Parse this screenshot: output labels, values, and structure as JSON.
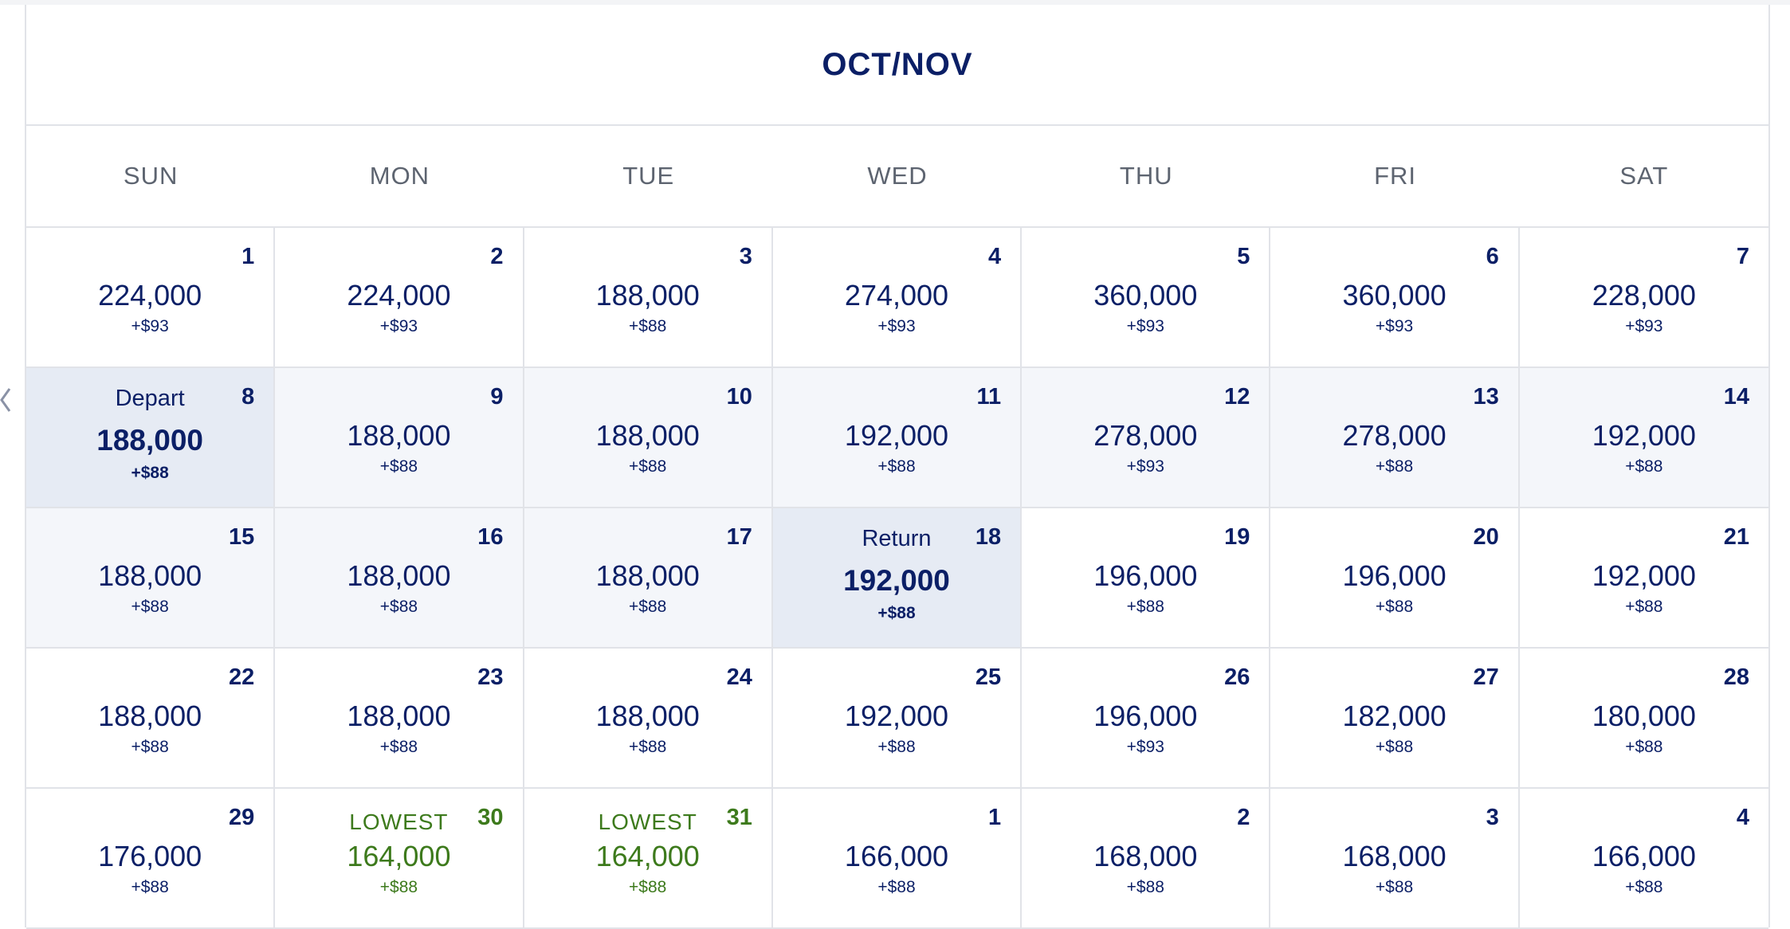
{
  "calendar": {
    "month_title": "OCT/NOV",
    "weekdays": [
      "SUN",
      "MON",
      "TUE",
      "WED",
      "THU",
      "FRI",
      "SAT"
    ],
    "days": [
      {
        "day": "1",
        "miles": "224,000",
        "fee": "+$93"
      },
      {
        "day": "2",
        "miles": "224,000",
        "fee": "+$93"
      },
      {
        "day": "3",
        "miles": "188,000",
        "fee": "+$88"
      },
      {
        "day": "4",
        "miles": "274,000",
        "fee": "+$93"
      },
      {
        "day": "5",
        "miles": "360,000",
        "fee": "+$93"
      },
      {
        "day": "6",
        "miles": "360,000",
        "fee": "+$93"
      },
      {
        "day": "7",
        "miles": "228,000",
        "fee": "+$93"
      },
      {
        "day": "8",
        "miles": "188,000",
        "fee": "+$88",
        "label": "Depart",
        "state": "selected"
      },
      {
        "day": "9",
        "miles": "188,000",
        "fee": "+$88",
        "state": "range"
      },
      {
        "day": "10",
        "miles": "188,000",
        "fee": "+$88",
        "state": "range"
      },
      {
        "day": "11",
        "miles": "192,000",
        "fee": "+$88",
        "state": "range"
      },
      {
        "day": "12",
        "miles": "278,000",
        "fee": "+$93",
        "state": "range"
      },
      {
        "day": "13",
        "miles": "278,000",
        "fee": "+$88",
        "state": "range"
      },
      {
        "day": "14",
        "miles": "192,000",
        "fee": "+$88",
        "state": "range"
      },
      {
        "day": "15",
        "miles": "188,000",
        "fee": "+$88",
        "state": "range"
      },
      {
        "day": "16",
        "miles": "188,000",
        "fee": "+$88",
        "state": "range"
      },
      {
        "day": "17",
        "miles": "188,000",
        "fee": "+$88",
        "state": "range"
      },
      {
        "day": "18",
        "miles": "192,000",
        "fee": "+$88",
        "label": "Return",
        "state": "selected"
      },
      {
        "day": "19",
        "miles": "196,000",
        "fee": "+$88"
      },
      {
        "day": "20",
        "miles": "196,000",
        "fee": "+$88"
      },
      {
        "day": "21",
        "miles": "192,000",
        "fee": "+$88"
      },
      {
        "day": "22",
        "miles": "188,000",
        "fee": "+$88"
      },
      {
        "day": "23",
        "miles": "188,000",
        "fee": "+$88"
      },
      {
        "day": "24",
        "miles": "188,000",
        "fee": "+$88"
      },
      {
        "day": "25",
        "miles": "192,000",
        "fee": "+$88"
      },
      {
        "day": "26",
        "miles": "196,000",
        "fee": "+$93"
      },
      {
        "day": "27",
        "miles": "182,000",
        "fee": "+$88"
      },
      {
        "day": "28",
        "miles": "180,000",
        "fee": "+$88"
      },
      {
        "day": "29",
        "miles": "176,000",
        "fee": "+$88"
      },
      {
        "day": "30",
        "miles": "164,000",
        "fee": "+$88",
        "label": "LOWEST",
        "state": "lowest"
      },
      {
        "day": "31",
        "miles": "164,000",
        "fee": "+$88",
        "label": "LOWEST",
        "state": "lowest"
      },
      {
        "day": "1",
        "miles": "166,000",
        "fee": "+$88"
      },
      {
        "day": "2",
        "miles": "168,000",
        "fee": "+$88"
      },
      {
        "day": "3",
        "miles": "168,000",
        "fee": "+$88"
      },
      {
        "day": "4",
        "miles": "166,000",
        "fee": "+$88"
      }
    ]
  },
  "navigation": {
    "prev_icon": "chevron-left-icon"
  },
  "colors": {
    "primary_text": "#0b1f66",
    "weekday_text": "#5d6470",
    "lowest_green": "#3d7a1c",
    "range_bg": "#f4f6fa",
    "selected_bg": "#e6ebf4",
    "grid_line": "#e1e3e8"
  }
}
